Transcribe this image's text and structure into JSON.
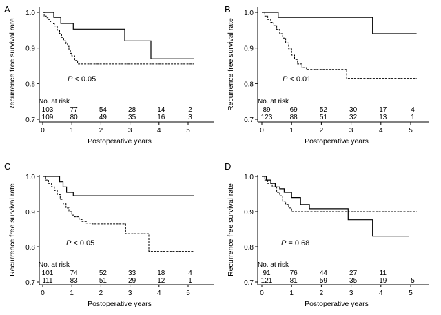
{
  "chart_data": [
    {
      "type": "line",
      "panel_label": "A",
      "ylabel": "Recurrence free survival rate",
      "xlabel": "Postoperative years",
      "xlim": [
        0,
        5.3
      ],
      "ylim": [
        0.7,
        1.0
      ],
      "x_ticks": [
        "0",
        "1",
        "2",
        "3",
        "4",
        "5"
      ],
      "y_ticks": [
        "0.7",
        "0.8",
        "0.9",
        "1.0"
      ],
      "p_prefix": "P",
      "p_rest": " < 0.05",
      "risk_title": "No. at risk",
      "risk_rows": [
        [
          "103",
          "77",
          "54",
          "28",
          "14",
          "2"
        ],
        [
          "109",
          "80",
          "49",
          "35",
          "16",
          "3"
        ]
      ],
      "series": [
        {
          "style": "solid",
          "end": 5.2,
          "x": [
            0,
            0.38,
            0.62,
            1.05,
            2.82,
            3.72
          ],
          "y": [
            1.0,
            0.986,
            0.969,
            0.953,
            0.92,
            0.87
          ]
        },
        {
          "style": "dashed",
          "end": 5.2,
          "x": [
            0,
            0.05,
            0.12,
            0.18,
            0.25,
            0.32,
            0.4,
            0.5,
            0.58,
            0.65,
            0.72,
            0.8,
            0.85,
            0.9,
            0.95,
            1.0,
            1.1,
            1.2
          ],
          "y": [
            1.0,
            0.99,
            0.985,
            0.98,
            0.974,
            0.968,
            0.962,
            0.95,
            0.94,
            0.93,
            0.92,
            0.912,
            0.905,
            0.895,
            0.885,
            0.878,
            0.865,
            0.855
          ]
        }
      ]
    },
    {
      "type": "line",
      "panel_label": "B",
      "ylabel": "Recurrence free survival rate",
      "xlabel": "Postoperative years",
      "xlim": [
        0,
        5.3
      ],
      "ylim": [
        0.7,
        1.0
      ],
      "x_ticks": [
        "0",
        "1",
        "2",
        "3",
        "4",
        "5"
      ],
      "y_ticks": [
        "0.7",
        "0.8",
        "0.9",
        "1.0"
      ],
      "p_prefix": "P",
      "p_rest": " < 0.01",
      "risk_title": "No. at risk",
      "risk_rows": [
        [
          "89",
          "69",
          "52",
          "30",
          "17",
          "4"
        ],
        [
          "123",
          "88",
          "51",
          "32",
          "13",
          "1"
        ]
      ],
      "series": [
        {
          "style": "solid",
          "end": 5.2,
          "x": [
            0,
            0.55,
            3.72
          ],
          "y": [
            1.0,
            0.986,
            0.94
          ]
        },
        {
          "style": "dashed",
          "end": 5.2,
          "x": [
            0,
            0.1,
            0.2,
            0.3,
            0.4,
            0.5,
            0.6,
            0.7,
            0.8,
            0.9,
            1.0,
            1.1,
            1.2,
            1.35,
            1.5,
            2.85
          ],
          "y": [
            1.0,
            0.99,
            0.98,
            0.972,
            0.963,
            0.952,
            0.94,
            0.928,
            0.914,
            0.898,
            0.88,
            0.868,
            0.855,
            0.845,
            0.84,
            0.815
          ]
        }
      ]
    },
    {
      "type": "line",
      "panel_label": "C",
      "ylabel": "Recurrence free survival rate",
      "xlabel": "Postoperative years",
      "xlim": [
        0,
        5.3
      ],
      "ylim": [
        0.7,
        1.0
      ],
      "x_ticks": [
        "0",
        "1",
        "2",
        "3",
        "4",
        "5"
      ],
      "y_ticks": [
        "0.7",
        "0.8",
        "0.9",
        "1.0"
      ],
      "p_prefix": "P",
      "p_rest": " < 0.05",
      "risk_title": "No. at risk",
      "risk_rows": [
        [
          "101",
          "74",
          "52",
          "33",
          "18",
          "4"
        ],
        [
          "111",
          "83",
          "51",
          "29",
          "12",
          "1"
        ]
      ],
      "series": [
        {
          "style": "solid",
          "end": 5.2,
          "x": [
            0,
            0.58,
            0.7,
            0.82,
            1.05
          ],
          "y": [
            1.0,
            0.985,
            0.97,
            0.955,
            0.945
          ]
        },
        {
          "style": "dashed",
          "end": 5.2,
          "x": [
            0,
            0.1,
            0.2,
            0.3,
            0.4,
            0.5,
            0.6,
            0.7,
            0.8,
            0.9,
            1.0,
            1.1,
            1.25,
            1.35,
            1.5,
            1.7,
            2.85,
            3.65
          ],
          "y": [
            1.0,
            0.99,
            0.98,
            0.97,
            0.96,
            0.948,
            0.935,
            0.922,
            0.91,
            0.9,
            0.89,
            0.885,
            0.878,
            0.872,
            0.867,
            0.865,
            0.837,
            0.787
          ]
        }
      ]
    },
    {
      "type": "line",
      "panel_label": "D",
      "ylabel": "Recurrence free survival rate",
      "xlabel": "Postoperative years",
      "xlim": [
        0,
        5.3
      ],
      "ylim": [
        0.7,
        1.0
      ],
      "x_ticks": [
        "0",
        "1",
        "2",
        "3",
        "4",
        "5"
      ],
      "y_ticks": [
        "0.7",
        "0.8",
        "0.9",
        "1.0"
      ],
      "p_prefix": "P",
      "p_rest": " = 0.68",
      "risk_title": "No. at risk",
      "risk_rows": [
        [
          "91",
          "76",
          "44",
          "27",
          "11",
          ""
        ],
        [
          "121",
          "81",
          "59",
          "35",
          "19",
          "5"
        ]
      ],
      "series": [
        {
          "style": "solid",
          "end": 4.95,
          "x": [
            0,
            0.15,
            0.3,
            0.45,
            0.6,
            0.75,
            1.0,
            1.3,
            1.6,
            2.9,
            3.72
          ],
          "y": [
            1.0,
            0.99,
            0.98,
            0.97,
            0.965,
            0.955,
            0.94,
            0.92,
            0.908,
            0.877,
            0.83
          ]
        },
        {
          "style": "dashed",
          "end": 5.2,
          "x": [
            0,
            0.1,
            0.2,
            0.35,
            0.5,
            0.6,
            0.7,
            0.8,
            0.9,
            1.0
          ],
          "y": [
            1.0,
            0.99,
            0.98,
            0.97,
            0.955,
            0.945,
            0.93,
            0.92,
            0.91,
            0.9
          ]
        }
      ]
    }
  ]
}
